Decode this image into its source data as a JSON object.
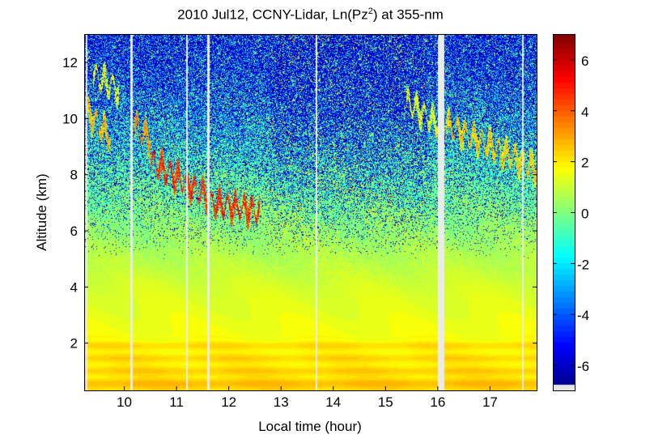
{
  "chart_data": {
    "type": "heatmap",
    "title_prefix": "2010 Jul12, CCNY-Lidar, Ln(Pz",
    "title_sup": "2",
    "title_suffix": ") at 355-nm",
    "xlabel": "Local time (hour)",
    "ylabel": "Altitude (km)",
    "xlim": [
      9.24,
      17.9
    ],
    "ylim": [
      0.3,
      13.0
    ],
    "xticks": [
      10,
      11,
      12,
      13,
      14,
      15,
      16,
      17
    ],
    "yticks": [
      2,
      4,
      6,
      8,
      10,
      12
    ],
    "colorbar": {
      "colormap": "jet",
      "range": [
        -7.0,
        7.0
      ],
      "ticks": [
        6,
        4,
        2,
        0,
        -2,
        -4,
        -6
      ],
      "nodata_color": "#e6e6e6"
    },
    "data_gaps_hours": [
      [
        9.26,
        9.29
      ],
      [
        10.12,
        10.16
      ],
      [
        11.18,
        11.21
      ],
      [
        11.58,
        11.64
      ],
      [
        13.66,
        13.69
      ],
      [
        16.0,
        16.12
      ],
      [
        17.62,
        17.65
      ]
    ],
    "background_profile": {
      "altitude_km": [
        0.3,
        0.7,
        1.0,
        2.0,
        2.3,
        4.0,
        6.0,
        8.0,
        10.0,
        13.0
      ],
      "mean_ln_pz2": [
        2.6,
        2.4,
        2.2,
        2.0,
        1.6,
        1.2,
        0.3,
        -0.5,
        -1.5,
        -2.5
      ]
    },
    "cloud_layers": [
      {
        "t_start": 9.3,
        "t_end": 9.75,
        "z_start": 10.2,
        "z_end": 9.3,
        "value": 3.0
      },
      {
        "t_start": 9.4,
        "t_end": 9.9,
        "z_start": 11.6,
        "z_end": 11.0,
        "value": 1.8
      },
      {
        "t_start": 10.2,
        "t_end": 10.5,
        "z_start": 9.8,
        "z_end": 9.2,
        "value": 3.5
      },
      {
        "t_start": 10.5,
        "t_end": 11.6,
        "z_start": 8.5,
        "z_end": 7.2,
        "value": 5.0
      },
      {
        "t_start": 11.65,
        "t_end": 12.6,
        "z_start": 7.0,
        "z_end": 6.7,
        "value": 5.2
      },
      {
        "t_start": 15.4,
        "t_end": 16.0,
        "z_start": 10.6,
        "z_end": 9.8,
        "value": 1.8
      },
      {
        "t_start": 16.15,
        "t_end": 17.9,
        "z_start": 9.8,
        "z_end": 8.2,
        "value": 2.8
      }
    ]
  }
}
